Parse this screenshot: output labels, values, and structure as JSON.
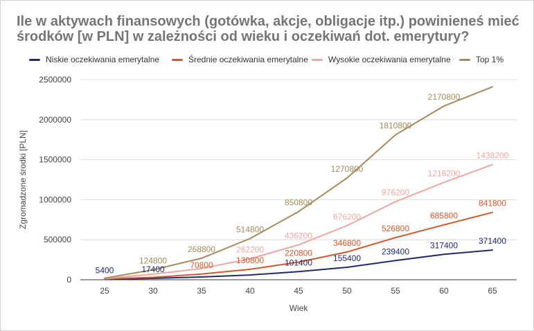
{
  "title_line1": "Ile w aktywach finansowych (gotówka, akcje, obligacje itp.) powinieneś mieć",
  "title_line2": "środków [w PLN] w zależności od wieku i oczekiwań dot. emerytury?",
  "chart_data": {
    "type": "line",
    "xlabel": "Wiek",
    "ylabel": "Zgromadzone środki [PLN]",
    "x": [
      25,
      30,
      35,
      40,
      45,
      50,
      55,
      60,
      65
    ],
    "ylim": [
      0,
      2500000
    ],
    "yticks": [
      0,
      500000,
      1000000,
      1500000,
      2000000,
      2500000
    ],
    "ytick_labels": [
      "0",
      "500000",
      "1000000",
      "1500000",
      "2000000",
      "2500000"
    ],
    "xtick_labels": [
      "25",
      "30",
      "35",
      "40",
      "45",
      "50",
      "55",
      "60",
      "65"
    ],
    "grid": true,
    "legend_position": "top",
    "series": [
      {
        "name": "Niskie oczekiwania emerytalne",
        "color": "#1f2a6e",
        "values": [
          5400,
          17400,
          35000,
          60000,
          101400,
          155400,
          239400,
          317400,
          371400
        ],
        "data_labels": [
          "5400",
          "17400",
          "",
          "",
          "101400",
          "155400",
          "239400",
          "317400",
          "371400"
        ]
      },
      {
        "name": "Średnie oczekiwania emerytalne",
        "color": "#d4572a",
        "values": [
          10000,
          30000,
          70800,
          130800,
          220800,
          346800,
          526800,
          685800,
          841800
        ],
        "data_labels": [
          "",
          "",
          "70800",
          "130800",
          "220800",
          "346800",
          "526800",
          "685800",
          "841800"
        ]
      },
      {
        "name": "Wysokie oczekiwania emerytalne",
        "color": "#eda6a0",
        "values": [
          15000,
          70000,
          140000,
          262200,
          436200,
          676200,
          976200,
          1216200,
          1438200
        ],
        "data_labels": [
          "",
          "",
          "",
          "262200",
          "436200",
          "676200",
          "976200",
          "1216200",
          "1438200"
        ]
      },
      {
        "name": "Top 1%",
        "color": "#a38b5b",
        "values": [
          20000,
          124800,
          268800,
          514800,
          850800,
          1270800,
          1810800,
          2170800,
          2410000
        ],
        "data_labels": [
          "",
          "124800",
          "268800",
          "514800",
          "850800",
          "1270800",
          "1810800",
          "2170800",
          ""
        ]
      }
    ]
  }
}
